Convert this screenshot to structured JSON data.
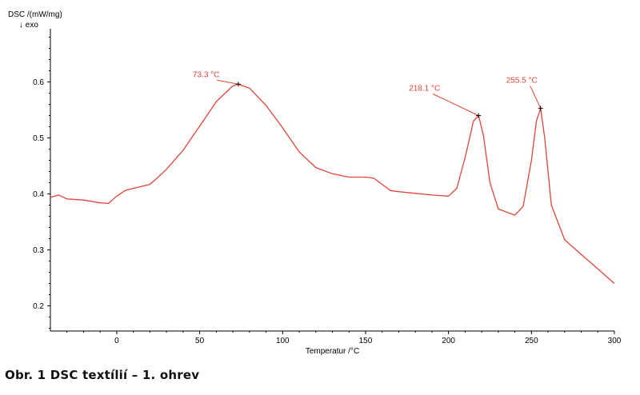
{
  "chart_data": {
    "type": "line",
    "ylabel": "DSC /(mW/mg)",
    "ylabel_direction": "↓ exo",
    "xlabel": "Temperatur /°C",
    "xlim": [
      -40,
      300
    ],
    "ylim": [
      0.155,
      0.695
    ],
    "x_ticks": [
      0,
      50,
      100,
      150,
      200,
      250,
      300
    ],
    "y_ticks": [
      0.2,
      0.3,
      0.4,
      0.5,
      0.6
    ],
    "grid": false,
    "line_color": "#e0453a",
    "series": [
      {
        "x": [
          -40,
          -35,
          -30,
          -20,
          -10,
          -5,
          0,
          5,
          10,
          20,
          25,
          30,
          40,
          50,
          60,
          70,
          73.3,
          80,
          90,
          100,
          110,
          120,
          130,
          140,
          150,
          155,
          160,
          165,
          170,
          180,
          190,
          200,
          205,
          210,
          215,
          218.1,
          221,
          225,
          230,
          240,
          245,
          250,
          253,
          255.5,
          258,
          262,
          270,
          280,
          290,
          300
        ],
        "y": [
          0.394,
          0.398,
          0.391,
          0.389,
          0.384,
          0.383,
          0.396,
          0.406,
          0.41,
          0.417,
          0.43,
          0.444,
          0.478,
          0.521,
          0.565,
          0.593,
          0.596,
          0.589,
          0.558,
          0.518,
          0.475,
          0.447,
          0.436,
          0.43,
          0.43,
          0.428,
          0.417,
          0.406,
          0.404,
          0.401,
          0.398,
          0.396,
          0.41,
          0.465,
          0.53,
          0.54,
          0.505,
          0.42,
          0.373,
          0.362,
          0.378,
          0.46,
          0.53,
          0.553,
          0.5,
          0.38,
          0.318,
          0.292,
          0.266,
          0.24
        ]
      }
    ],
    "annotations": [
      {
        "label": "73.3 °C",
        "x": 73.3,
        "y": 0.596
      },
      {
        "label": "218.1 °C",
        "x": 218.1,
        "y": 0.54
      },
      {
        "label": "255.5 °C",
        "x": 255.5,
        "y": 0.553
      }
    ]
  },
  "caption": "Obr. 1 DSC textílií – 1. ohrev"
}
